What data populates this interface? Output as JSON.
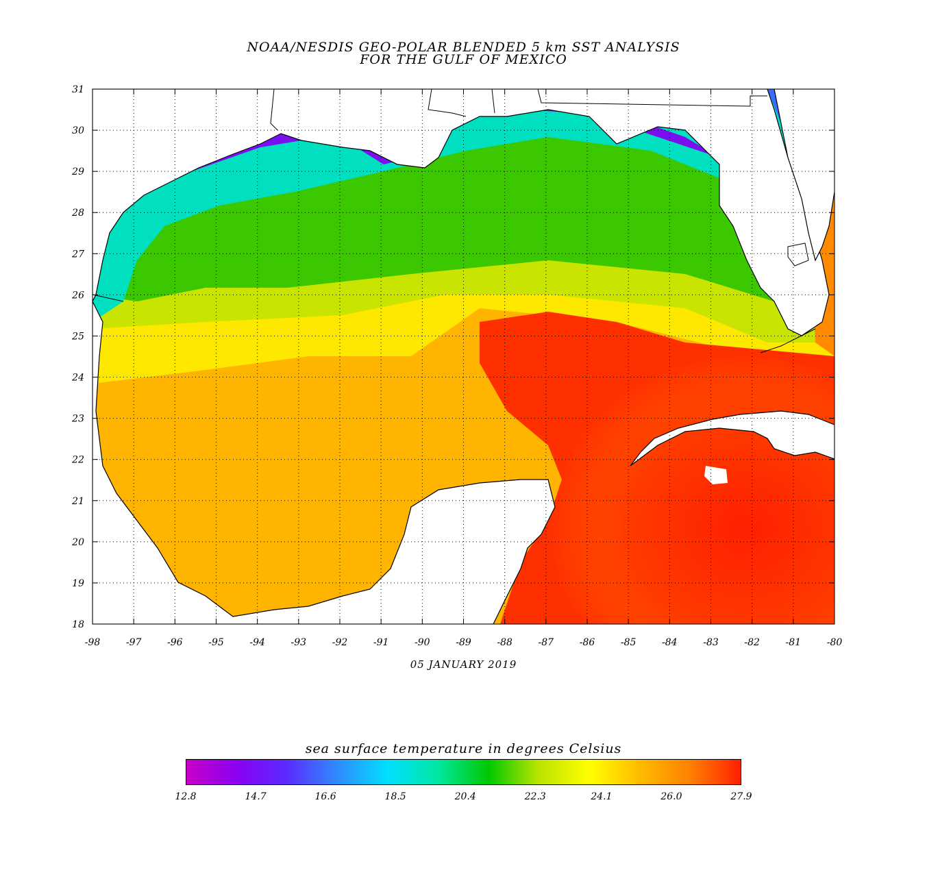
{
  "title": {
    "line1": "NOAA/NESDIS GEO-POLAR BLENDED 5 km SST ANALYSIS",
    "line2": "FOR THE GULF OF MEXICO"
  },
  "date": "05 JANUARY 2019",
  "axes": {
    "lon_ticks": [
      "-98",
      "-97",
      "-96",
      "-95",
      "-94",
      "-93",
      "-92",
      "-91",
      "-90",
      "-89",
      "-88",
      "-87",
      "-86",
      "-85",
      "-84",
      "-83",
      "-82",
      "-81",
      "-80"
    ],
    "lat_ticks": [
      "31",
      "30",
      "29",
      "28",
      "27",
      "26",
      "25",
      "24",
      "23",
      "22",
      "21",
      "20",
      "19",
      "18"
    ],
    "lon_range": [
      -98,
      -80
    ],
    "lat_range": [
      18,
      31
    ],
    "grid": "dotted"
  },
  "legend": {
    "title": "sea surface temperature in degrees Celsius",
    "labels": [
      "12.8",
      "14.7",
      "16.6",
      "18.5",
      "20.4",
      "22.3",
      "24.1",
      "26.0",
      "27.9"
    ],
    "range": [
      12.8,
      27.9
    ],
    "colors": [
      "#c800c8",
      "#8a00f0",
      "#5a2cff",
      "#2f8cff",
      "#00e0ff",
      "#00e7a0",
      "#00c800",
      "#bce400",
      "#ffff00",
      "#ffbb00",
      "#ff8000",
      "#ff2000"
    ]
  },
  "map": {
    "land_color": "#ffffff",
    "coast_color": "#000000",
    "water_colors": {
      "cold": "#7a00f0",
      "cool": "#00e5ff",
      "mild": "#00d000",
      "warm": "#ffff00",
      "hot": "#ff2200"
    }
  }
}
